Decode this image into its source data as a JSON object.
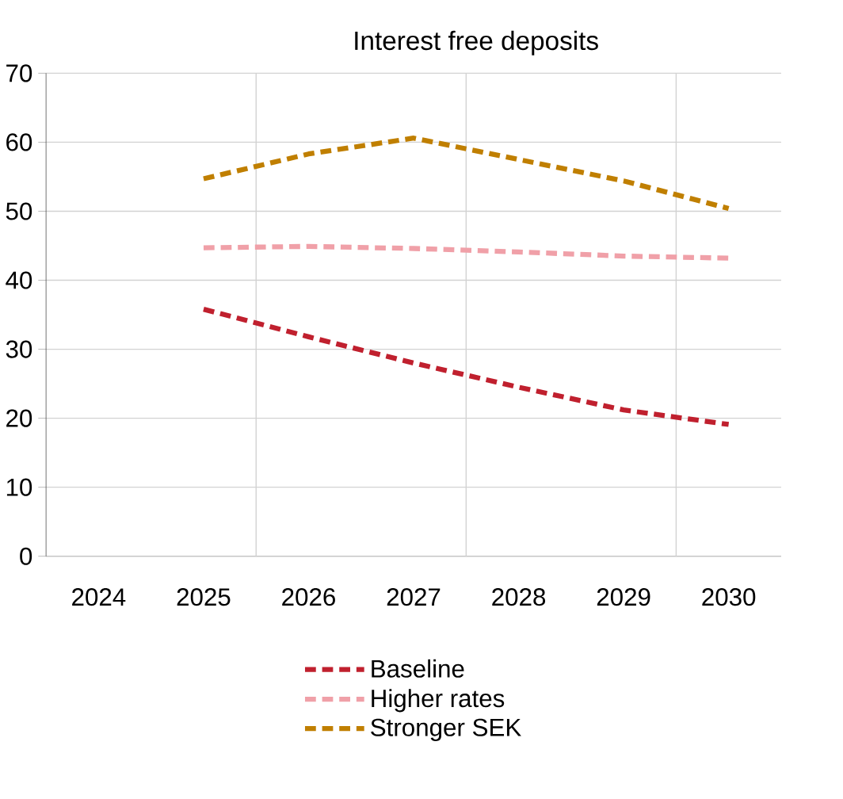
{
  "chart_data": {
    "type": "line",
    "title": "Interest free deposits",
    "categories": [
      "2024",
      "2025",
      "2026",
      "2027",
      "2028",
      "2029",
      "2030"
    ],
    "series": [
      {
        "name": "Baseline",
        "color": "#c0202e",
        "values": [
          null,
          35.8,
          31.8,
          28.0,
          24.5,
          21.2,
          19.1
        ]
      },
      {
        "name": "Higher rates",
        "color": "#f0a0a8",
        "values": [
          null,
          44.7,
          44.9,
          44.6,
          44.1,
          43.5,
          43.2
        ]
      },
      {
        "name": "Stronger SEK",
        "color": "#c07f00",
        "values": [
          null,
          54.7,
          58.3,
          60.6,
          57.5,
          54.4,
          50.4
        ]
      }
    ],
    "ylim": [
      0,
      70
    ],
    "yticks": [
      0,
      10,
      20,
      30,
      40,
      50,
      60,
      70
    ],
    "grid": true,
    "legend": "bottom",
    "line_style": "dashed",
    "marker": "none"
  }
}
